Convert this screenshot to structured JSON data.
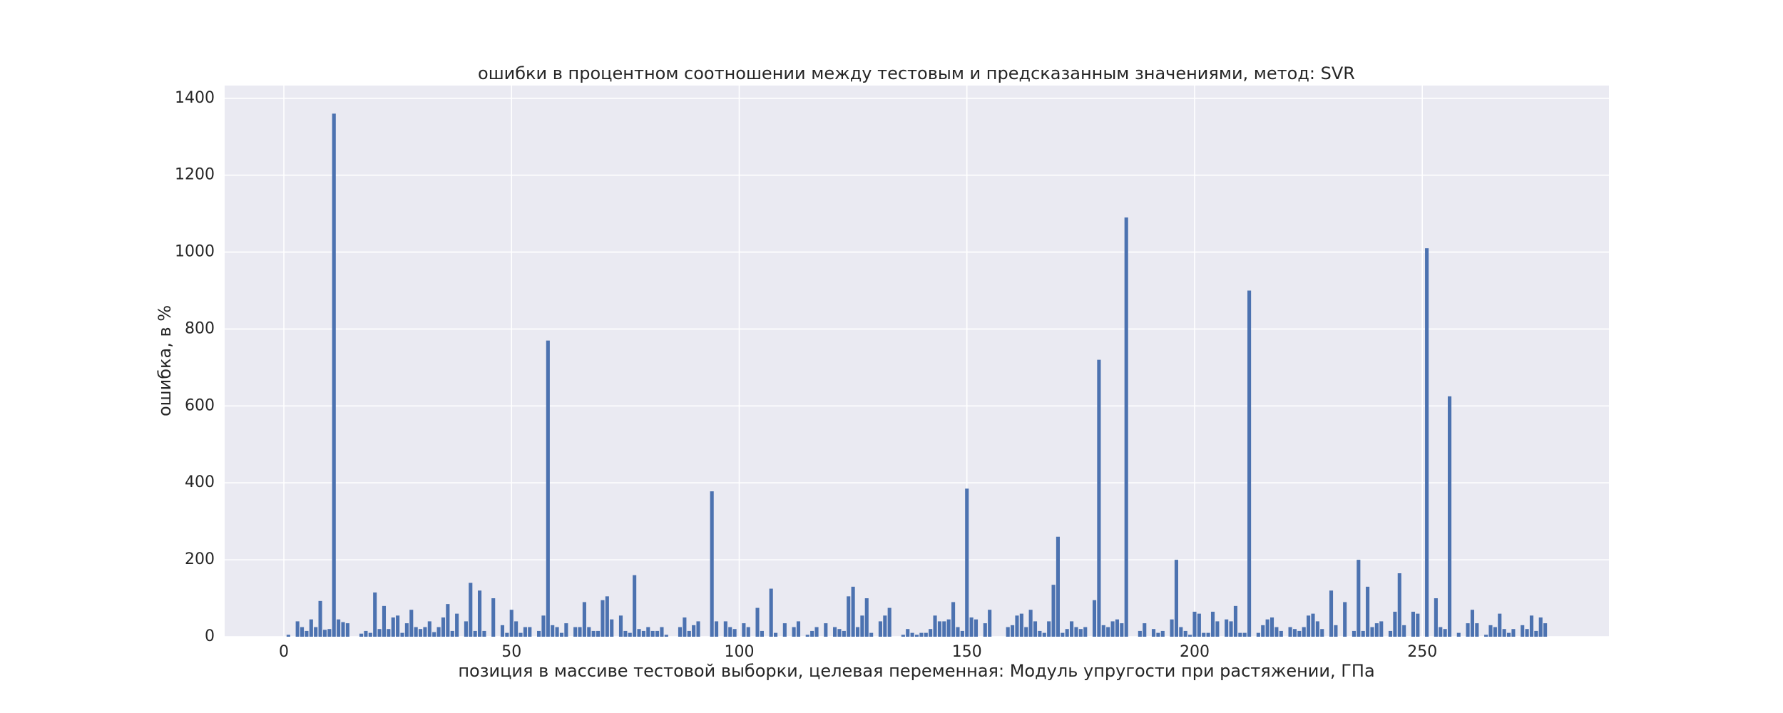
{
  "chart_data": {
    "type": "bar",
    "title": "ошибки в процентном соотношении между тестовым и предсказанным значениями, метод: SVR",
    "x_label": "позиция в массиве тестовой выборки, целевая переменная: Модуль упругости при растяжении, ГПа",
    "y_label": "ошибка, в %",
    "color": "#4c72b0",
    "grid": true,
    "xlim": [
      -13,
      291
    ],
    "ylim": [
      0,
      1433
    ],
    "xticks": [
      0,
      50,
      100,
      150,
      200,
      250
    ],
    "yticks": [
      0,
      200,
      400,
      600,
      800,
      1000,
      1200,
      1400
    ],
    "x": [
      0,
      1,
      2,
      3,
      4,
      5,
      6,
      7,
      8,
      9,
      10,
      11,
      12,
      13,
      14,
      15,
      16,
      17,
      18,
      19,
      20,
      21,
      22,
      23,
      24,
      25,
      26,
      27,
      28,
      29,
      30,
      31,
      32,
      33,
      34,
      35,
      36,
      37,
      38,
      39,
      40,
      41,
      42,
      43,
      44,
      45,
      46,
      47,
      48,
      49,
      50,
      51,
      52,
      53,
      54,
      55,
      56,
      57,
      58,
      59,
      60,
      61,
      62,
      63,
      64,
      65,
      66,
      67,
      68,
      69,
      70,
      71,
      72,
      73,
      74,
      75,
      76,
      77,
      78,
      79,
      80,
      81,
      82,
      83,
      84,
      85,
      86,
      87,
      88,
      89,
      90,
      91,
      92,
      93,
      94,
      95,
      96,
      97,
      98,
      99,
      100,
      101,
      102,
      103,
      104,
      105,
      106,
      107,
      108,
      109,
      110,
      111,
      112,
      113,
      114,
      115,
      116,
      117,
      118,
      119,
      120,
      121,
      122,
      123,
      124,
      125,
      126,
      127,
      128,
      129,
      130,
      131,
      132,
      133,
      134,
      135,
      136,
      137,
      138,
      139,
      140,
      141,
      142,
      143,
      144,
      145,
      146,
      147,
      148,
      149,
      150,
      151,
      152,
      153,
      154,
      155,
      156,
      157,
      158,
      159,
      160,
      161,
      162,
      163,
      164,
      165,
      166,
      167,
      168,
      169,
      170,
      171,
      172,
      173,
      174,
      175,
      176,
      177,
      178,
      179,
      180,
      181,
      182,
      183,
      184,
      185,
      186,
      187,
      188,
      189,
      190,
      191,
      192,
      193,
      194,
      195,
      196,
      197,
      198,
      199,
      200,
      201,
      202,
      203,
      204,
      205,
      206,
      207,
      208,
      209,
      210,
      211,
      212,
      213,
      214,
      215,
      216,
      217,
      218,
      219,
      220,
      221,
      222,
      223,
      224,
      225,
      226,
      227,
      228,
      229,
      230,
      231,
      232,
      233,
      234,
      235,
      236,
      237,
      238,
      239,
      240,
      241,
      242,
      243,
      244,
      245,
      246,
      247,
      248,
      249,
      250,
      251,
      252,
      253,
      254,
      255,
      256,
      257,
      258,
      259,
      260,
      261,
      262,
      263,
      264,
      265,
      266,
      267,
      268,
      269,
      270,
      271,
      272,
      273,
      274,
      275,
      276,
      277
    ],
    "values": [
      0,
      5,
      0,
      40,
      25,
      15,
      45,
      25,
      93,
      18,
      20,
      1360,
      45,
      38,
      35,
      0,
      0,
      8,
      15,
      10,
      115,
      20,
      80,
      20,
      50,
      55,
      10,
      35,
      70,
      25,
      20,
      25,
      40,
      12,
      25,
      50,
      85,
      15,
      60,
      0,
      40,
      140,
      15,
      120,
      15,
      0,
      100,
      0,
      30,
      10,
      70,
      40,
      10,
      25,
      25,
      0,
      15,
      55,
      770,
      30,
      25,
      10,
      35,
      0,
      25,
      25,
      90,
      25,
      15,
      15,
      95,
      105,
      45,
      0,
      55,
      15,
      10,
      160,
      20,
      15,
      25,
      15,
      15,
      25,
      5,
      0,
      0,
      25,
      50,
      15,
      30,
      40,
      0,
      0,
      378,
      40,
      0,
      40,
      25,
      20,
      0,
      35,
      25,
      0,
      75,
      15,
      0,
      125,
      10,
      0,
      35,
      0,
      25,
      40,
      0,
      5,
      15,
      25,
      0,
      35,
      0,
      25,
      20,
      15,
      105,
      130,
      25,
      55,
      100,
      10,
      0,
      40,
      55,
      75,
      0,
      0,
      5,
      20,
      10,
      5,
      10,
      10,
      20,
      55,
      40,
      40,
      45,
      90,
      25,
      15,
      385,
      50,
      45,
      0,
      35,
      70,
      0,
      0,
      0,
      25,
      30,
      55,
      60,
      25,
      70,
      40,
      15,
      10,
      40,
      135,
      260,
      10,
      20,
      40,
      25,
      20,
      25,
      0,
      95,
      720,
      30,
      25,
      40,
      45,
      35,
      1090,
      0,
      0,
      15,
      35,
      0,
      20,
      10,
      15,
      0,
      45,
      200,
      25,
      15,
      5,
      65,
      60,
      10,
      10,
      65,
      40,
      0,
      45,
      40,
      80,
      10,
      10,
      900,
      0,
      10,
      30,
      45,
      50,
      25,
      15,
      0,
      25,
      20,
      15,
      25,
      55,
      60,
      40,
      20,
      0,
      120,
      30,
      0,
      90,
      0,
      15,
      200,
      15,
      130,
      25,
      35,
      40,
      0,
      15,
      65,
      165,
      30,
      0,
      65,
      60,
      0,
      1010,
      0,
      100,
      25,
      20,
      625,
      0,
      10,
      0,
      35,
      70,
      35,
      0,
      5,
      30,
      25,
      60,
      20,
      10,
      20,
      0,
      30,
      20,
      55,
      15,
      50,
      35
    ]
  }
}
